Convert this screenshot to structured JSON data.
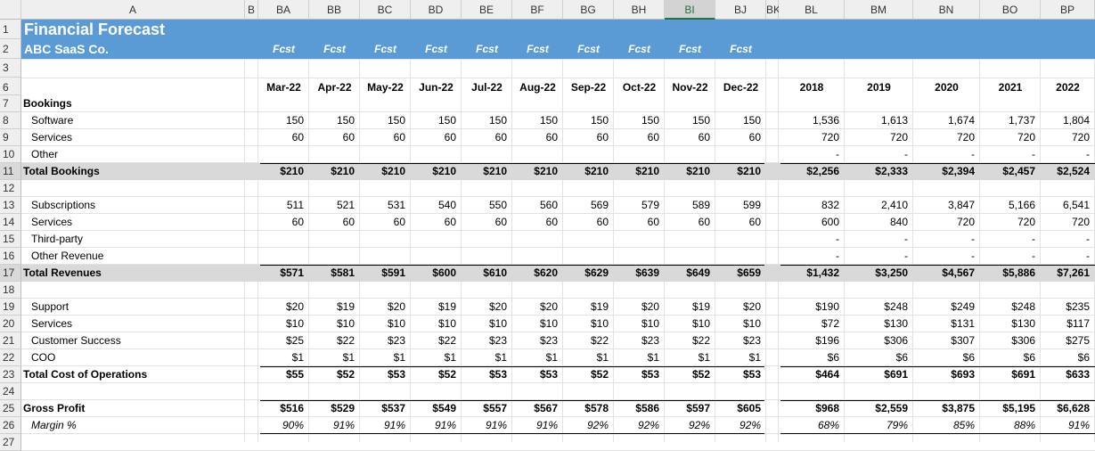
{
  "sheet": {
    "column_letters": [
      "A",
      "B",
      "BA",
      "BB",
      "BC",
      "BD",
      "BE",
      "BF",
      "BG",
      "BH",
      "BI",
      "BJ",
      "BK",
      "BL",
      "BM",
      "BN",
      "BO",
      "BP"
    ],
    "selected_column": "BI",
    "title": "Financial Forecast",
    "company": "ABC SaaS Co.",
    "title_row": "1",
    "company_row": "2",
    "blank_row": "3",
    "header_row": "6",
    "fcst_labels": [
      "Fcst",
      "Fcst",
      "Fcst",
      "Fcst",
      "Fcst",
      "Fcst",
      "Fcst",
      "Fcst",
      "Fcst",
      "Fcst"
    ],
    "months": [
      "Mar-22",
      "Apr-22",
      "May-22",
      "Jun-22",
      "Jul-22",
      "Aug-22",
      "Sep-22",
      "Oct-22",
      "Nov-22",
      "Dec-22"
    ],
    "years": [
      "2018",
      "2019",
      "2020",
      "2021",
      "2022"
    ],
    "rows": [
      {
        "num": "7",
        "label": "Bookings",
        "bold": true
      },
      {
        "num": "8",
        "label": "Software",
        "months": [
          "150",
          "150",
          "150",
          "150",
          "150",
          "150",
          "150",
          "150",
          "150",
          "150"
        ],
        "years": [
          "1,536",
          "1,613",
          "1,674",
          "1,737",
          "1,804"
        ]
      },
      {
        "num": "9",
        "label": "Services",
        "months": [
          "60",
          "60",
          "60",
          "60",
          "60",
          "60",
          "60",
          "60",
          "60",
          "60"
        ],
        "years": [
          "720",
          "720",
          "720",
          "720",
          "720"
        ]
      },
      {
        "num": "10",
        "label": "Other",
        "years": [
          "-",
          "-",
          "-",
          "-",
          "-"
        ]
      },
      {
        "num": "11",
        "label": "Total Bookings",
        "bold": true,
        "total": true,
        "months": [
          "$210",
          "$210",
          "$210",
          "$210",
          "$210",
          "$210",
          "$210",
          "$210",
          "$210",
          "$210"
        ],
        "years": [
          "$2,256",
          "$2,333",
          "$2,394",
          "$2,457",
          "$2,524"
        ]
      },
      {
        "num": "12"
      },
      {
        "num": "13",
        "label": "Subscriptions",
        "months": [
          "511",
          "521",
          "531",
          "540",
          "550",
          "560",
          "569",
          "579",
          "589",
          "599"
        ],
        "years": [
          "832",
          "2,410",
          "3,847",
          "5,166",
          "6,541"
        ]
      },
      {
        "num": "14",
        "label": "Services",
        "months": [
          "60",
          "60",
          "60",
          "60",
          "60",
          "60",
          "60",
          "60",
          "60",
          "60"
        ],
        "years": [
          "600",
          "840",
          "720",
          "720",
          "720"
        ]
      },
      {
        "num": "15",
        "label": "Third-party",
        "years": [
          "-",
          "-",
          "-",
          "-",
          "-"
        ]
      },
      {
        "num": "16",
        "label": "Other Revenue",
        "years": [
          "-",
          "-",
          "-",
          "-",
          "-"
        ]
      },
      {
        "num": "17",
        "label": "Total Revenues",
        "bold": true,
        "total": true,
        "months": [
          "$571",
          "$581",
          "$591",
          "$600",
          "$610",
          "$620",
          "$629",
          "$639",
          "$649",
          "$659"
        ],
        "years": [
          "$1,432",
          "$3,250",
          "$4,567",
          "$5,886",
          "$7,261"
        ]
      },
      {
        "num": "18"
      },
      {
        "num": "19",
        "label": "Support",
        "months": [
          "$20",
          "$19",
          "$20",
          "$19",
          "$20",
          "$20",
          "$19",
          "$20",
          "$19",
          "$20"
        ],
        "years": [
          "$190",
          "$248",
          "$249",
          "$248",
          "$235"
        ]
      },
      {
        "num": "20",
        "label": "Services",
        "months": [
          "$10",
          "$10",
          "$10",
          "$10",
          "$10",
          "$10",
          "$10",
          "$10",
          "$10",
          "$10"
        ],
        "years": [
          "$72",
          "$130",
          "$131",
          "$130",
          "$117"
        ]
      },
      {
        "num": "21",
        "label": "Customer Success",
        "months": [
          "$25",
          "$22",
          "$23",
          "$22",
          "$23",
          "$23",
          "$22",
          "$23",
          "$22",
          "$23"
        ],
        "years": [
          "$196",
          "$306",
          "$307",
          "$306",
          "$275"
        ]
      },
      {
        "num": "22",
        "label": "COO",
        "months": [
          "$1",
          "$1",
          "$1",
          "$1",
          "$1",
          "$1",
          "$1",
          "$1",
          "$1",
          "$1"
        ],
        "years": [
          "$6",
          "$6",
          "$6",
          "$6",
          "$6"
        ]
      },
      {
        "num": "23",
        "label": "Total Cost of Operations",
        "bold": true,
        "rule_above": true,
        "months": [
          "$55",
          "$52",
          "$53",
          "$52",
          "$53",
          "$53",
          "$52",
          "$53",
          "$52",
          "$53"
        ],
        "years": [
          "$464",
          "$691",
          "$693",
          "$691",
          "$633"
        ]
      },
      {
        "num": "24"
      },
      {
        "num": "25",
        "label": "Gross Profit",
        "bold": true,
        "rule_above": true,
        "months": [
          "$516",
          "$529",
          "$537",
          "$549",
          "$557",
          "$567",
          "$578",
          "$586",
          "$597",
          "$605"
        ],
        "years": [
          "$968",
          "$2,559",
          "$3,875",
          "$5,195",
          "$6,628"
        ]
      },
      {
        "num": "26",
        "label": "Margin %",
        "italic": true,
        "rule_below": true,
        "months": [
          "90%",
          "91%",
          "91%",
          "91%",
          "91%",
          "91%",
          "92%",
          "92%",
          "92%",
          "92%"
        ],
        "years": [
          "68%",
          "79%",
          "85%",
          "88%",
          "91%"
        ]
      },
      {
        "num": "27"
      }
    ]
  }
}
